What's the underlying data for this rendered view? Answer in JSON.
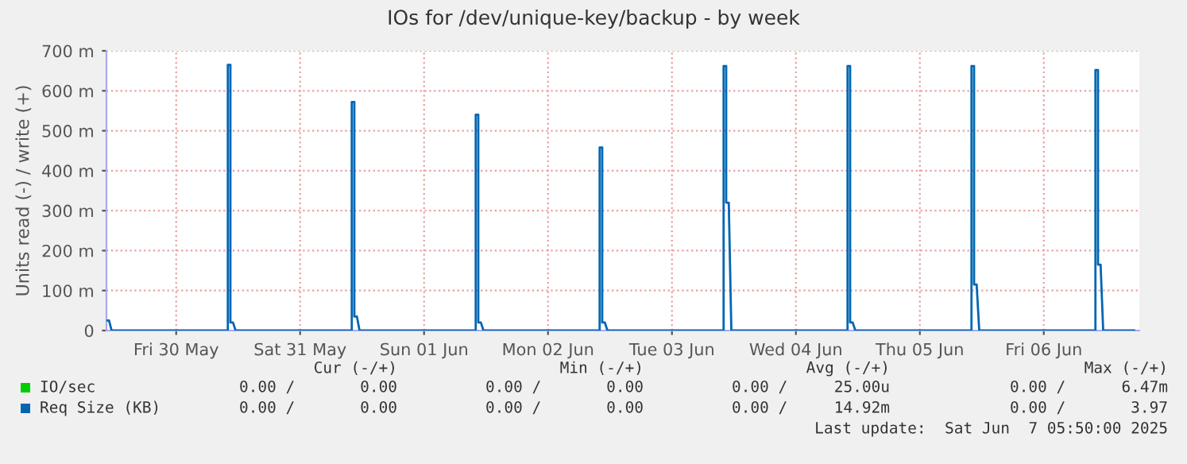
{
  "chart_data": {
    "type": "line",
    "title": "IOs for /dev/unique-key/backup - by week",
    "ylabel": "Units read (-) / write (+)",
    "xlim": [
      "2025-05-29T22:30",
      "2025-06-07T06:30"
    ],
    "xticks": [
      {
        "value": "2025-05-30T12:00",
        "label": "Fri 30 May"
      },
      {
        "value": "2025-05-31T12:00",
        "label": "Sat 31 May"
      },
      {
        "value": "2025-06-01T12:00",
        "label": "Sun 01 Jun"
      },
      {
        "value": "2025-06-02T12:00",
        "label": "Mon 02 Jun"
      },
      {
        "value": "2025-06-03T12:00",
        "label": "Tue 03 Jun"
      },
      {
        "value": "2025-06-04T12:00",
        "label": "Wed 04 Jun"
      },
      {
        "value": "2025-06-05T12:00",
        "label": "Thu 05 Jun"
      },
      {
        "value": "2025-06-06T12:00",
        "label": "Fri 06 Jun"
      }
    ],
    "ylim": [
      0,
      700
    ],
    "yticks": [
      0,
      {
        "value": 100,
        "label": "100 m"
      },
      {
        "value": 200,
        "label": "200 m"
      },
      {
        "value": 300,
        "label": "300 m"
      },
      {
        "value": 400,
        "label": "400 m"
      },
      {
        "value": 500,
        "label": "500 m"
      },
      {
        "value": 600,
        "label": "600 m"
      },
      {
        "value": 700,
        "label": "700 m"
      }
    ],
    "grid": true,
    "legend": "bottom",
    "marker": "none",
    "line_style": "solid",
    "series": [
      {
        "name": "IO/sec",
        "color": "#00cc00"
      },
      {
        "name": "Req Size (KB)",
        "color": "#0066b3",
        "x": [
          "2025-05-29T22:30",
          "2025-05-29T23:00",
          "2025-05-29T23:30",
          "2025-05-30T22:00",
          "2025-05-30T22:00",
          "2025-05-30T22:30",
          "2025-05-30T22:30",
          "2025-05-30T23:00",
          "2025-05-30T23:30",
          "2025-05-31T22:00",
          "2025-05-31T22:00",
          "2025-05-31T22:30",
          "2025-05-31T22:30",
          "2025-05-31T23:00",
          "2025-05-31T23:30",
          "2025-06-01T22:00",
          "2025-06-01T22:00",
          "2025-06-01T22:30",
          "2025-06-01T22:30",
          "2025-06-01T23:00",
          "2025-06-01T23:30",
          "2025-06-02T22:00",
          "2025-06-02T22:00",
          "2025-06-02T22:30",
          "2025-06-02T22:30",
          "2025-06-02T23:00",
          "2025-06-02T23:30",
          "2025-06-03T22:00",
          "2025-06-03T22:00",
          "2025-06-03T22:30",
          "2025-06-03T22:30",
          "2025-06-03T23:00",
          "2025-06-03T23:30",
          "2025-06-04T22:00",
          "2025-06-04T22:00",
          "2025-06-04T22:30",
          "2025-06-04T22:30",
          "2025-06-04T23:00",
          "2025-06-04T23:30",
          "2025-06-05T22:00",
          "2025-06-05T22:00",
          "2025-06-05T22:30",
          "2025-06-05T22:30",
          "2025-06-05T23:00",
          "2025-06-05T23:30",
          "2025-06-06T22:00",
          "2025-06-06T22:00",
          "2025-06-06T22:30",
          "2025-06-06T22:30",
          "2025-06-06T23:00",
          "2025-06-06T23:30",
          "2025-06-07T05:30"
        ],
        "values": [
          25,
          25,
          0,
          0,
          665,
          665,
          20,
          20,
          0,
          0,
          572,
          572,
          35,
          35,
          0,
          0,
          540,
          540,
          20,
          20,
          0,
          0,
          458,
          458,
          20,
          20,
          0,
          0,
          662,
          662,
          320,
          320,
          0,
          0,
          662,
          662,
          20,
          20,
          0,
          0,
          662,
          662,
          115,
          115,
          0,
          0,
          652,
          652,
          165,
          165,
          0,
          0
        ]
      }
    ],
    "annotations": [
      "Cur (-/+)",
      "Min (-/+)",
      "Avg (-/+)",
      "Max (-/+)",
      "0.00 /       0.00",
      "0.00 /       0.00",
      "0.00 /     25.00u",
      "0.00 /      6.47m",
      "0.00 /       0.00",
      "0.00 /       0.00",
      "0.00 /     14.92m",
      "0.00 /       3.97",
      "Last update:  Sat Jun  7 05:50:00 2025"
    ]
  }
}
